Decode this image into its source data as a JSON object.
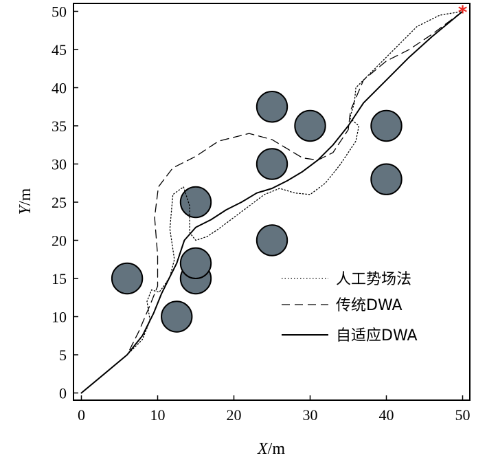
{
  "chart_data": {
    "type": "line",
    "xlabel": {
      "var": "X",
      "unit": "/m"
    },
    "ylabel": {
      "var": "Y",
      "unit": "/m"
    },
    "xlim": [
      -1,
      51
    ],
    "ylim": [
      -1,
      51
    ],
    "xticks": [
      "0",
      "10",
      "20",
      "30",
      "40",
      "50"
    ],
    "yticks": [
      "0",
      "5",
      "10",
      "15",
      "20",
      "25",
      "30",
      "35",
      "40",
      "45",
      "50"
    ],
    "legend_position": "bottom-right",
    "goal": {
      "x": 50,
      "y": 50,
      "marker": "*",
      "color": "#e8231c"
    },
    "obstacles": {
      "radius": 2,
      "fill": "#63737e",
      "centers": [
        [
          6,
          15
        ],
        [
          12.5,
          10
        ],
        [
          15,
          15
        ],
        [
          15,
          17
        ],
        [
          15,
          25
        ],
        [
          25,
          20
        ],
        [
          25,
          30
        ],
        [
          25,
          37.5
        ],
        [
          30,
          35
        ],
        [
          40,
          35
        ],
        [
          40,
          28
        ]
      ]
    },
    "series": [
      {
        "name": "人工势场法",
        "style": "dotted",
        "points": [
          [
            0,
            0
          ],
          [
            3,
            2.5
          ],
          [
            6,
            5
          ],
          [
            8,
            7
          ],
          [
            9,
            9.5
          ],
          [
            8.6,
            12
          ],
          [
            9.2,
            13.5
          ],
          [
            10.2,
            13.2
          ],
          [
            10.8,
            14
          ],
          [
            11.6,
            15.2
          ],
          [
            12.2,
            17.5
          ],
          [
            11.6,
            21.5
          ],
          [
            12,
            26
          ],
          [
            13.4,
            27
          ],
          [
            14.2,
            24.5
          ],
          [
            14.2,
            21
          ],
          [
            15,
            20
          ],
          [
            16.5,
            20.5
          ],
          [
            18,
            21.5
          ],
          [
            20,
            23
          ],
          [
            22,
            24.5
          ],
          [
            24,
            26
          ],
          [
            26,
            26.8
          ],
          [
            28,
            26.2
          ],
          [
            30,
            26
          ],
          [
            32,
            27.5
          ],
          [
            34,
            30
          ],
          [
            36,
            33
          ],
          [
            36.4,
            35
          ],
          [
            35.2,
            36
          ],
          [
            35.8,
            38
          ],
          [
            36,
            40
          ],
          [
            38,
            42
          ],
          [
            40,
            44
          ],
          [
            42,
            46
          ],
          [
            44,
            48
          ],
          [
            47,
            49.5
          ],
          [
            50,
            50
          ]
        ]
      },
      {
        "name": "传统DWA",
        "style": "dashed",
        "points": [
          [
            0,
            0
          ],
          [
            3,
            2.5
          ],
          [
            6,
            5
          ],
          [
            7.5,
            8
          ],
          [
            9,
            11.5
          ],
          [
            10,
            14
          ],
          [
            10,
            18
          ],
          [
            9.6,
            23
          ],
          [
            10.1,
            27
          ],
          [
            12,
            29.5
          ],
          [
            15,
            31
          ],
          [
            18,
            33
          ],
          [
            22,
            34
          ],
          [
            25,
            33.2
          ],
          [
            27,
            32
          ],
          [
            29,
            30.8
          ],
          [
            31,
            30.5
          ],
          [
            33,
            31.5
          ],
          [
            35,
            34.5
          ],
          [
            35.3,
            37
          ],
          [
            37,
            41
          ],
          [
            40,
            43.5
          ],
          [
            43,
            45
          ],
          [
            46,
            47
          ],
          [
            48,
            48.5
          ],
          [
            50,
            50
          ]
        ]
      },
      {
        "name": "自适应DWA",
        "style": "solid",
        "points": [
          [
            0,
            0
          ],
          [
            3,
            2.5
          ],
          [
            6,
            5
          ],
          [
            8,
            7.5
          ],
          [
            9.5,
            10.5
          ],
          [
            10.5,
            13
          ],
          [
            11.5,
            15
          ],
          [
            12.5,
            17
          ],
          [
            13.5,
            20
          ],
          [
            15,
            21.7
          ],
          [
            17,
            22.7
          ],
          [
            19,
            24
          ],
          [
            21,
            25
          ],
          [
            23,
            26.2
          ],
          [
            25,
            26.8
          ],
          [
            27,
            27.8
          ],
          [
            29,
            29
          ],
          [
            31,
            30.5
          ],
          [
            33,
            32.5
          ],
          [
            35,
            35
          ],
          [
            37,
            38
          ],
          [
            40,
            41
          ],
          [
            43,
            44
          ],
          [
            46,
            46.7
          ],
          [
            50,
            50
          ]
        ]
      }
    ]
  }
}
